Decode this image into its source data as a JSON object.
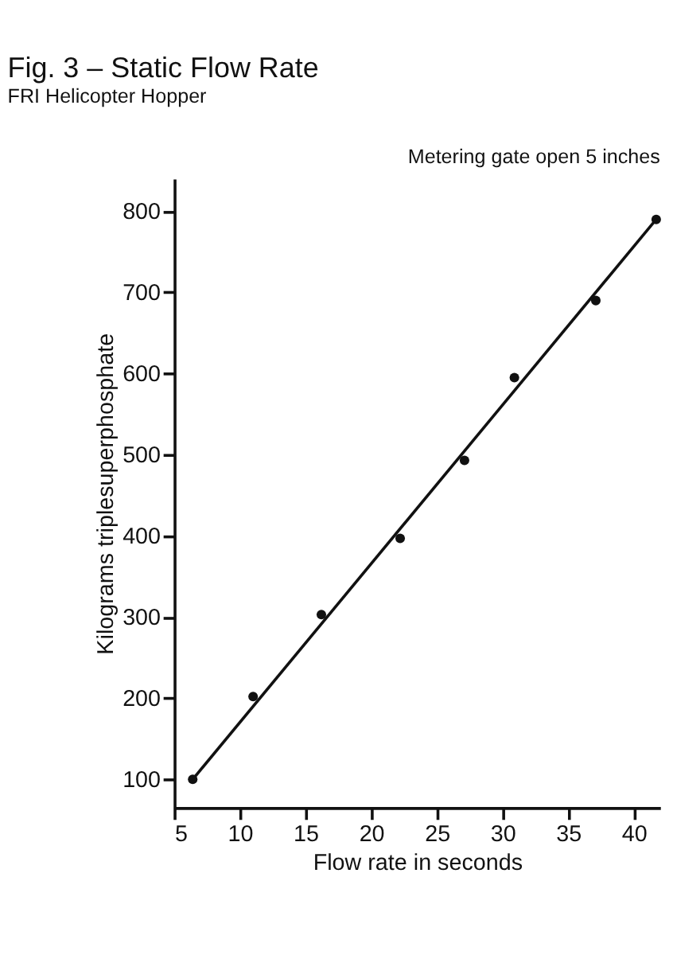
{
  "chart_data": {
    "type": "scatter",
    "title": "Fig. 3 – Static Flow Rate",
    "subtitle": "FRI Helicopter Hopper",
    "annotations": [
      "Metering gate open 5 inches"
    ],
    "xlabel": "Flow rate in seconds",
    "ylabel": "Kilograms triplesuperphosphate",
    "series": [
      {
        "color": "#111111",
        "marker": "circle",
        "x": [
          6.4,
          11.0,
          16.2,
          22.2,
          27.1,
          30.9,
          37.1,
          41.7
        ],
        "values": [
          100,
          202,
          303,
          397,
          493,
          595,
          690,
          790
        ]
      },
      {
        "type": "line",
        "color": "#111111",
        "line_style": "solid",
        "marker": "none",
        "x": [
          6.4,
          41.7
        ],
        "values": [
          100,
          790
        ]
      }
    ],
    "xlim": [
      5,
      42
    ],
    "xticks": [
      5,
      10,
      15,
      20,
      25,
      30,
      35,
      40
    ],
    "ylim": [
      65,
      840
    ],
    "yticks": [
      100,
      200,
      300,
      400,
      500,
      600,
      700,
      800
    ],
    "grid": false
  }
}
